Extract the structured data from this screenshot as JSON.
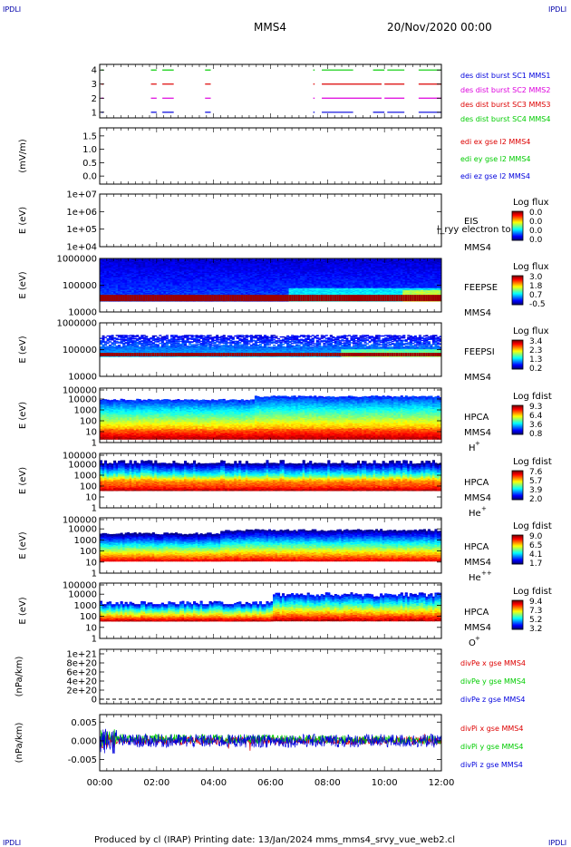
{
  "corner_tag": "IPDLI",
  "header": {
    "spacecraft": "MMS4",
    "date": "20/Nov/2020 00:00"
  },
  "footer": "Produced by cl (IRAP)   Printing date: 13/Jan/2024   mms_mms4_srvy_vue_web2.cl",
  "colors": {
    "c_black": "#000000",
    "c_red": "#dd0000",
    "c_magenta": "#dd00dd",
    "c_green": "#00cc00",
    "c_blue": "#0000dd",
    "c_tag": "#0000aa"
  },
  "chart_data": [
    {
      "type": "line",
      "title": "",
      "ylabel": "",
      "yticks": [
        "1",
        "2",
        "3",
        "4"
      ],
      "ylim": [
        0.6,
        4.4
      ],
      "legend": [
        {
          "text": "des dist burst SC1 MMS1",
          "color": "#0000dd"
        },
        {
          "text": "des dist burst SC2 MMS2",
          "color": "#dd00dd"
        },
        {
          "text": "des dist burst SC3 MMS3",
          "color": "#dd0000"
        },
        {
          "text": "des dist burst SC4 MMS4",
          "color": "#00cc00"
        }
      ],
      "series": [
        {
          "level": 4,
          "color": "#00cc00",
          "intervals": [
            [
              0.05,
              0.13
            ],
            [
              1.8,
              2.0
            ],
            [
              2.2,
              2.6
            ],
            [
              3.7,
              3.9
            ],
            [
              7.5,
              7.55
            ],
            [
              7.8,
              8.9
            ],
            [
              9.6,
              10.0
            ],
            [
              10.1,
              10.7
            ],
            [
              11.2,
              12.0
            ]
          ]
        },
        {
          "level": 3,
          "color": "#dd0000",
          "intervals": [
            [
              0.05,
              0.13
            ],
            [
              1.8,
              2.0
            ],
            [
              2.2,
              2.6
            ],
            [
              3.7,
              3.9
            ],
            [
              7.5,
              7.55
            ],
            [
              7.8,
              9.9
            ],
            [
              10.0,
              10.7
            ],
            [
              11.2,
              12.0
            ]
          ]
        },
        {
          "level": 2,
          "color": "#dd00dd",
          "intervals": [
            [
              0.05,
              0.13
            ],
            [
              1.8,
              2.0
            ],
            [
              2.2,
              2.6
            ],
            [
              3.7,
              3.9
            ],
            [
              7.5,
              7.55
            ],
            [
              7.8,
              9.9
            ],
            [
              10.0,
              10.7
            ],
            [
              11.2,
              12.0
            ]
          ]
        },
        {
          "level": 1,
          "color": "#0000dd",
          "intervals": [
            [
              0.05,
              0.13
            ],
            [
              1.8,
              2.0
            ],
            [
              2.2,
              2.6
            ],
            [
              3.7,
              3.9
            ],
            [
              7.5,
              7.55
            ],
            [
              7.8,
              8.9
            ],
            [
              9.6,
              10.0
            ],
            [
              10.1,
              10.7
            ],
            [
              11.2,
              12.0
            ]
          ]
        }
      ]
    },
    {
      "type": "line",
      "title": "",
      "ylabel": "(mV/m)",
      "yticks": [
        "0.0",
        "0.5",
        "1.0",
        "1.5"
      ],
      "ylim": [
        -0.3,
        1.8
      ],
      "legend": [
        {
          "text": "edi ex gse l2 MMS4",
          "color": "#dd0000"
        },
        {
          "text": "edi ey gse l2 MMS4",
          "color": "#00cc00"
        },
        {
          "text": "edi ez gse l2 MMS4",
          "color": "#0000dd"
        }
      ]
    },
    {
      "type": "heatmap",
      "title": "",
      "ylabel": "E (eV)",
      "yticks": [
        "1e+04",
        "1e+05",
        "1e+06",
        "1e+07"
      ],
      "log_range": [
        4,
        7
      ],
      "instrument": "EIS",
      "subtitle": "",
      "overlay_label": "|_ryy electron to",
      "colorbar": {
        "title": "Log flux",
        "ticks": [
          "0.0",
          "0.0",
          "0.0",
          "0.0"
        ]
      },
      "spectrum": null
    },
    {
      "type": "heatmap",
      "title": "",
      "ylabel": "E (eV)",
      "yticks": [
        "10000",
        "100000",
        "1000000"
      ],
      "log_range": [
        4,
        6
      ],
      "instrument": "FEEPSE",
      "subtitle": "",
      "colorbar": {
        "title": "Log flux",
        "ticks": [
          "3.0",
          "1.8",
          "0.7",
          "-0.5"
        ]
      },
      "spectrum": {
        "lo": 4.4,
        "hi": 5.98,
        "low_band": 4.58,
        "kind": "feepse",
        "sparse_hi": false
      }
    },
    {
      "type": "heatmap",
      "title": "",
      "ylabel": "E (eV)",
      "yticks": [
        "10000",
        "100000",
        "1000000"
      ],
      "log_range": [
        4,
        6
      ],
      "instrument": "FEEPSI",
      "subtitle": "",
      "colorbar": {
        "title": "Log flux",
        "ticks": [
          "3.4",
          "2.3",
          "1.3",
          "0.2"
        ]
      },
      "spectrum": {
        "lo": 4.75,
        "hi": 5.55,
        "low_band": 4.82,
        "kind": "feepsi",
        "sparse_hi": true
      }
    },
    {
      "type": "heatmap",
      "title": "",
      "ylabel": "E (eV)",
      "yticks": [
        "1",
        "10",
        "100",
        "1000",
        "10000",
        "100000"
      ],
      "log_range": [
        0,
        5
      ],
      "instrument": "HPCA",
      "subtitle": "MMS4",
      "species": "H",
      "charge": "+",
      "colorbar": {
        "title": "Log fdist",
        "ticks": [
          "9.3",
          "6.4",
          "3.6",
          "0.8"
        ]
      },
      "spectrum": {
        "lo": 0.3,
        "hi": 4.3,
        "kind": "hplus"
      }
    },
    {
      "type": "heatmap",
      "title": "",
      "ylabel": "E (eV)",
      "yticks": [
        "1",
        "10",
        "100",
        "1000",
        "10000",
        "100000"
      ],
      "log_range": [
        0,
        5
      ],
      "instrument": "HPCA",
      "subtitle": "MMS4",
      "species": "He",
      "charge": "+",
      "colorbar": {
        "title": "Log fdist",
        "ticks": [
          "7.6",
          "5.7",
          "3.9",
          "2.0"
        ]
      },
      "spectrum": {
        "lo": 1.6,
        "hi": 4.1,
        "kind": "heplus"
      }
    },
    {
      "type": "heatmap",
      "title": "",
      "ylabel": "E (eV)",
      "yticks": [
        "1",
        "10",
        "100",
        "1000",
        "10000",
        "100000"
      ],
      "log_range": [
        0,
        5
      ],
      "instrument": "HPCA",
      "subtitle": "MMS4",
      "species": "He",
      "charge": "++",
      "colorbar": {
        "title": "Log fdist",
        "ticks": [
          "9.0",
          "6.5",
          "4.1",
          "1.7"
        ]
      },
      "spectrum": {
        "lo": 1.1,
        "hi": 3.9,
        "kind": "hepp"
      }
    },
    {
      "type": "heatmap",
      "title": "",
      "ylabel": "E (eV)",
      "yticks": [
        "1",
        "10",
        "100",
        "1000",
        "10000",
        "100000"
      ],
      "log_range": [
        0,
        5
      ],
      "instrument": "HPCA",
      "subtitle": "MMS4",
      "species": "O",
      "charge": "+",
      "colorbar": {
        "title": "Log fdist",
        "ticks": [
          "9.4",
          "7.3",
          "5.2",
          "3.2"
        ]
      },
      "spectrum": {
        "lo": 1.6,
        "hi": 3.3,
        "kind": "oplus"
      }
    },
    {
      "type": "line",
      "title": "",
      "ylabel": "(nPa/km)",
      "yticks": [
        "0",
        "2e+20",
        "4e+20",
        "6e+20",
        "8e+20",
        "1e+21"
      ],
      "ylim": [
        -1e+20,
        1.1e+21
      ],
      "legend": [
        {
          "text": "divPe x gse MMS4",
          "color": "#dd0000"
        },
        {
          "text": "divPe y gse MMS4",
          "color": "#00cc00"
        },
        {
          "text": "divPe z gse MMS4",
          "color": "#0000dd"
        }
      ],
      "dashed_zero": true
    },
    {
      "type": "line",
      "title": "",
      "ylabel": "(nPa/km)",
      "yticks": [
        "-0.005",
        "0.000",
        "0.005"
      ],
      "ylim": [
        -0.008,
        0.007
      ],
      "legend": [
        {
          "text": "divPi x gse MMS4",
          "color": "#dd0000"
        },
        {
          "text": "divPi y gse MMS4",
          "color": "#00cc00"
        },
        {
          "text": "divPi z gse MMS4",
          "color": "#0000dd"
        }
      ],
      "noise": {
        "green_amp": 0.0012,
        "blue_amp": 0.0018,
        "red_amp": 0.001,
        "green_offset": 0.0007
      }
    }
  ],
  "xaxis": {
    "ticks": [
      "00:00",
      "02:00",
      "04:00",
      "06:00",
      "08:00",
      "10:00",
      "12:00"
    ],
    "range_hours": [
      0,
      12
    ]
  }
}
